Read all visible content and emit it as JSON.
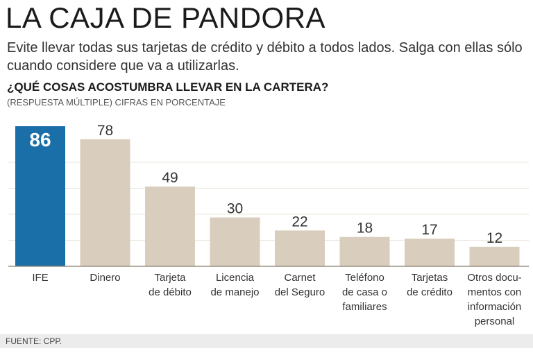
{
  "header": {
    "title": "LA CAJA DE PANDORA",
    "subtitle": "Evite llevar todas sus tarjetas de crédito y débito a todos lados. Salga con ellas sólo  cuando considere que va a utilizarlas.",
    "question": "¿QUÉ COSAS ACOSTUMBRA LLEVAR EN LA CARTERA?",
    "note": "(RESPUESTA MÚLTIPLE) CIFRAS EN PORCENTAJE"
  },
  "footer": {
    "source": "FUENTE: CPP."
  },
  "colors": {
    "highlight": "#1a6fa8",
    "bar": "#d9cebd",
    "text": "#333333"
  },
  "chart_data": {
    "type": "bar",
    "title": "¿QUÉ COSAS ACOSTUMBRA LLEVAR EN LA CARTERA?",
    "categories": [
      [
        "IFE"
      ],
      [
        "Dinero"
      ],
      [
        "Tarjeta",
        "de débito"
      ],
      [
        "Licencia",
        "de manejo"
      ],
      [
        "Carnet",
        "del Seguro"
      ],
      [
        "Teléfono",
        "de casa o",
        "familiares"
      ],
      [
        "Tarjetas",
        "de crédito"
      ],
      [
        "Otros docu-",
        "mentos con",
        "información",
        "personal"
      ]
    ],
    "values": [
      86,
      78,
      49,
      30,
      22,
      18,
      17,
      12
    ],
    "highlight_index": 0,
    "ylim": [
      0,
      86
    ],
    "grid": true
  }
}
